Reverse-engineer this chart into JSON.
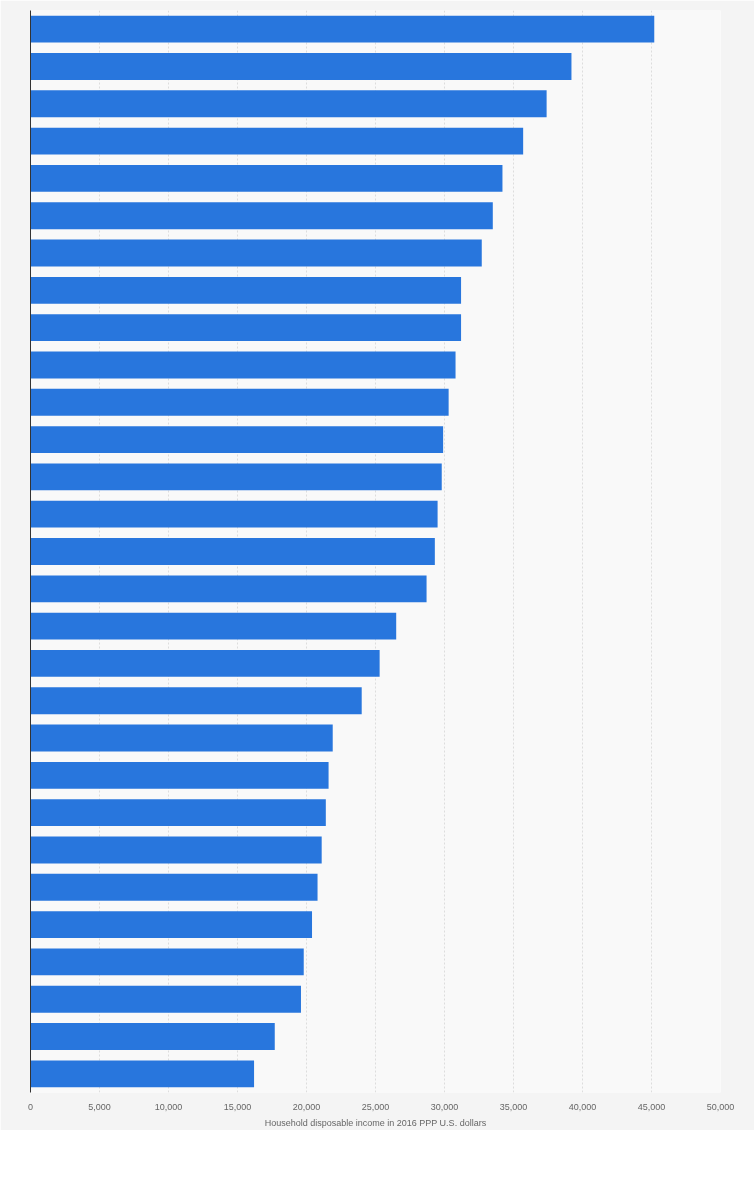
{
  "chart_data": {
    "type": "bar",
    "orientation": "horizontal",
    "xlabel": "Household disposable income in 2016 PPP U.S. dollars",
    "categories": [
      null,
      null,
      null,
      null,
      null,
      null,
      null,
      null,
      null,
      null,
      null,
      null,
      null,
      null,
      null,
      null,
      null,
      null,
      null,
      null,
      null,
      null,
      null,
      null,
      null,
      null,
      null,
      null,
      null
    ],
    "values": [
      45200,
      39200,
      37400,
      35700,
      34200,
      33500,
      32700,
      31200,
      31200,
      30800,
      30300,
      29900,
      29800,
      29500,
      29300,
      28700,
      26500,
      25300,
      24000,
      21900,
      21600,
      21400,
      21100,
      20800,
      20400,
      19800,
      19600,
      17700,
      16200
    ],
    "color": "#2876dd",
    "xlim": [
      0,
      50000
    ],
    "xticks": [
      0,
      {
        "value": 5000,
        "label": "5,000"
      },
      {
        "value": 10000,
        "label": "10,000"
      },
      {
        "value": 15000,
        "label": "15,000"
      },
      {
        "value": 20000,
        "label": "20,000"
      },
      {
        "value": 25000,
        "label": "25,000"
      },
      {
        "value": 30000,
        "label": "30,000"
      },
      {
        "value": 35000,
        "label": "35,000"
      },
      {
        "value": 40000,
        "label": "40,000"
      },
      {
        "value": 45000,
        "label": "45,000"
      },
      {
        "value": 50000,
        "label": "50,000"
      }
    ],
    "tick_labels": "x",
    "grid": "x"
  }
}
